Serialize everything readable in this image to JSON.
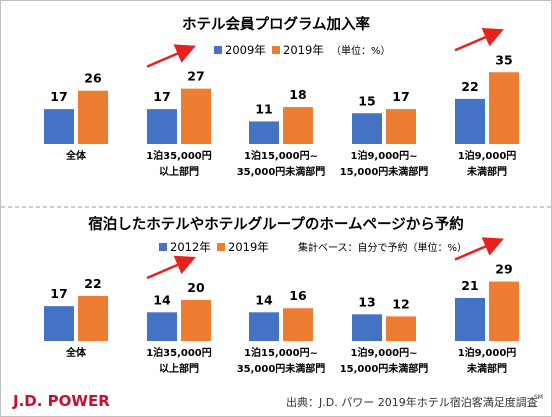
{
  "source": "出典：J.D. パワー 2019年ホテル宿泊客満足度調査",
  "source_mark": "SM",
  "brand": "J.D. POWER",
  "colors": {
    "blue": "#4472c4",
    "orange": "#ed7d31",
    "arrow": "#e8211d",
    "divider": "#9e9e9e"
  },
  "chart_data": [
    {
      "type": "bar",
      "title": "ホテル会員プログラム加入率",
      "note": "（単位：%）",
      "categories": [
        [
          "全体"
        ],
        [
          "1泊35,000円",
          "以上部門"
        ],
        [
          "1泊15,000円~",
          "35,000円未満部門"
        ],
        [
          "1泊9,000円~",
          "15,000円未満部門"
        ],
        [
          "1泊9,000円",
          "未満部門"
        ]
      ],
      "series": [
        {
          "name": "2009年",
          "color": "#4472c4",
          "values": [
            17,
            17,
            11,
            15,
            22
          ]
        },
        {
          "name": "2019年",
          "color": "#ed7d31",
          "values": [
            26,
            27,
            18,
            17,
            35
          ]
        }
      ],
      "arrows_on_categories": [
        1,
        4
      ]
    },
    {
      "type": "bar",
      "title": "宿泊したホテルやホテルグループのホームページから予約",
      "note": "集計ベース：自分で予約（単位：%）",
      "categories": [
        [
          "全体"
        ],
        [
          "1泊35,000円",
          "以上部門"
        ],
        [
          "1泊15,000円~",
          "35,000円未満部門"
        ],
        [
          "1泊9,000円~",
          "15,000円未満部門"
        ],
        [
          "1泊9,000円",
          "未満部門"
        ]
      ],
      "series": [
        {
          "name": "2012年",
          "color": "#4472c4",
          "values": [
            17,
            14,
            14,
            13,
            21
          ]
        },
        {
          "name": "2019年",
          "color": "#ed7d31",
          "values": [
            22,
            20,
            16,
            12,
            29
          ]
        }
      ],
      "arrows_on_categories": [
        1,
        4
      ]
    }
  ]
}
